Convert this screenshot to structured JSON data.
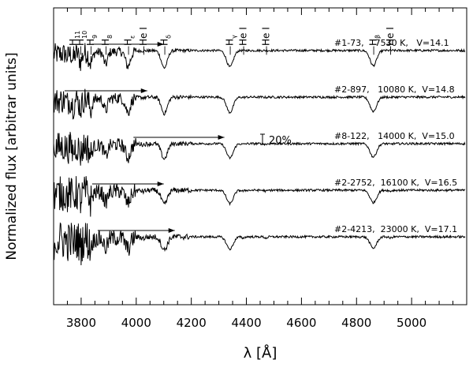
{
  "chart_data": {
    "type": "line",
    "title": "",
    "xlabel": "λ [Å]",
    "ylabel": "Normalized flux [arbitrar units]",
    "xlim": [
      3700,
      5200
    ],
    "x_ticks": [
      3800,
      4000,
      4200,
      4400,
      4600,
      4800,
      5000
    ],
    "x_tick_labels": [
      "3800",
      "4000",
      "4200",
      "4400",
      "4600",
      "4800",
      "5000"
    ],
    "y_ticks_shown": false,
    "grid": false,
    "scale_bar_label": "20%",
    "line_ids": [
      {
        "name": "H",
        "sub": "11",
        "wavelength": 3771
      },
      {
        "name": "H",
        "sub": "10",
        "wavelength": 3798
      },
      {
        "name": "H",
        "sub": "9",
        "wavelength": 3835
      },
      {
        "name": "H",
        "sub": "8",
        "wavelength": 3889
      },
      {
        "name": "H",
        "sub": "ε",
        "wavelength": 3970
      },
      {
        "name": "He I",
        "sub": "",
        "wavelength": 4026
      },
      {
        "name": "H",
        "sub": "δ",
        "wavelength": 4102
      },
      {
        "name": "H",
        "sub": "γ",
        "wavelength": 4340
      },
      {
        "name": "He I",
        "sub": "",
        "wavelength": 4388
      },
      {
        "name": "He I",
        "sub": "",
        "wavelength": 4471
      },
      {
        "name": "H",
        "sub": "β",
        "wavelength": 4861
      },
      {
        "name": "He I",
        "sub": "",
        "wavelength": 4922
      }
    ],
    "series": [
      {
        "label": "#1-73,    7530 K,   V=14.1",
        "offset": 4.0,
        "arrow": [
          3840,
          4100
        ]
      },
      {
        "label": "#2-897,   10080 K,  V=14.8",
        "offset": 3.0,
        "arrow": [
          3740,
          4040
        ]
      },
      {
        "label": "#8-122,   14000 K,  V=15.0",
        "offset": 2.0,
        "arrow": [
          3990,
          4320
        ]
      },
      {
        "label": "#2-2752,  16100 K,  V=16.5",
        "offset": 1.0,
        "arrow": [
          3840,
          4100
        ]
      },
      {
        "label": "#2-4213,  23000 K,  V=17.1",
        "offset": 0.0,
        "arrow": [
          3860,
          4140
        ]
      }
    ]
  }
}
